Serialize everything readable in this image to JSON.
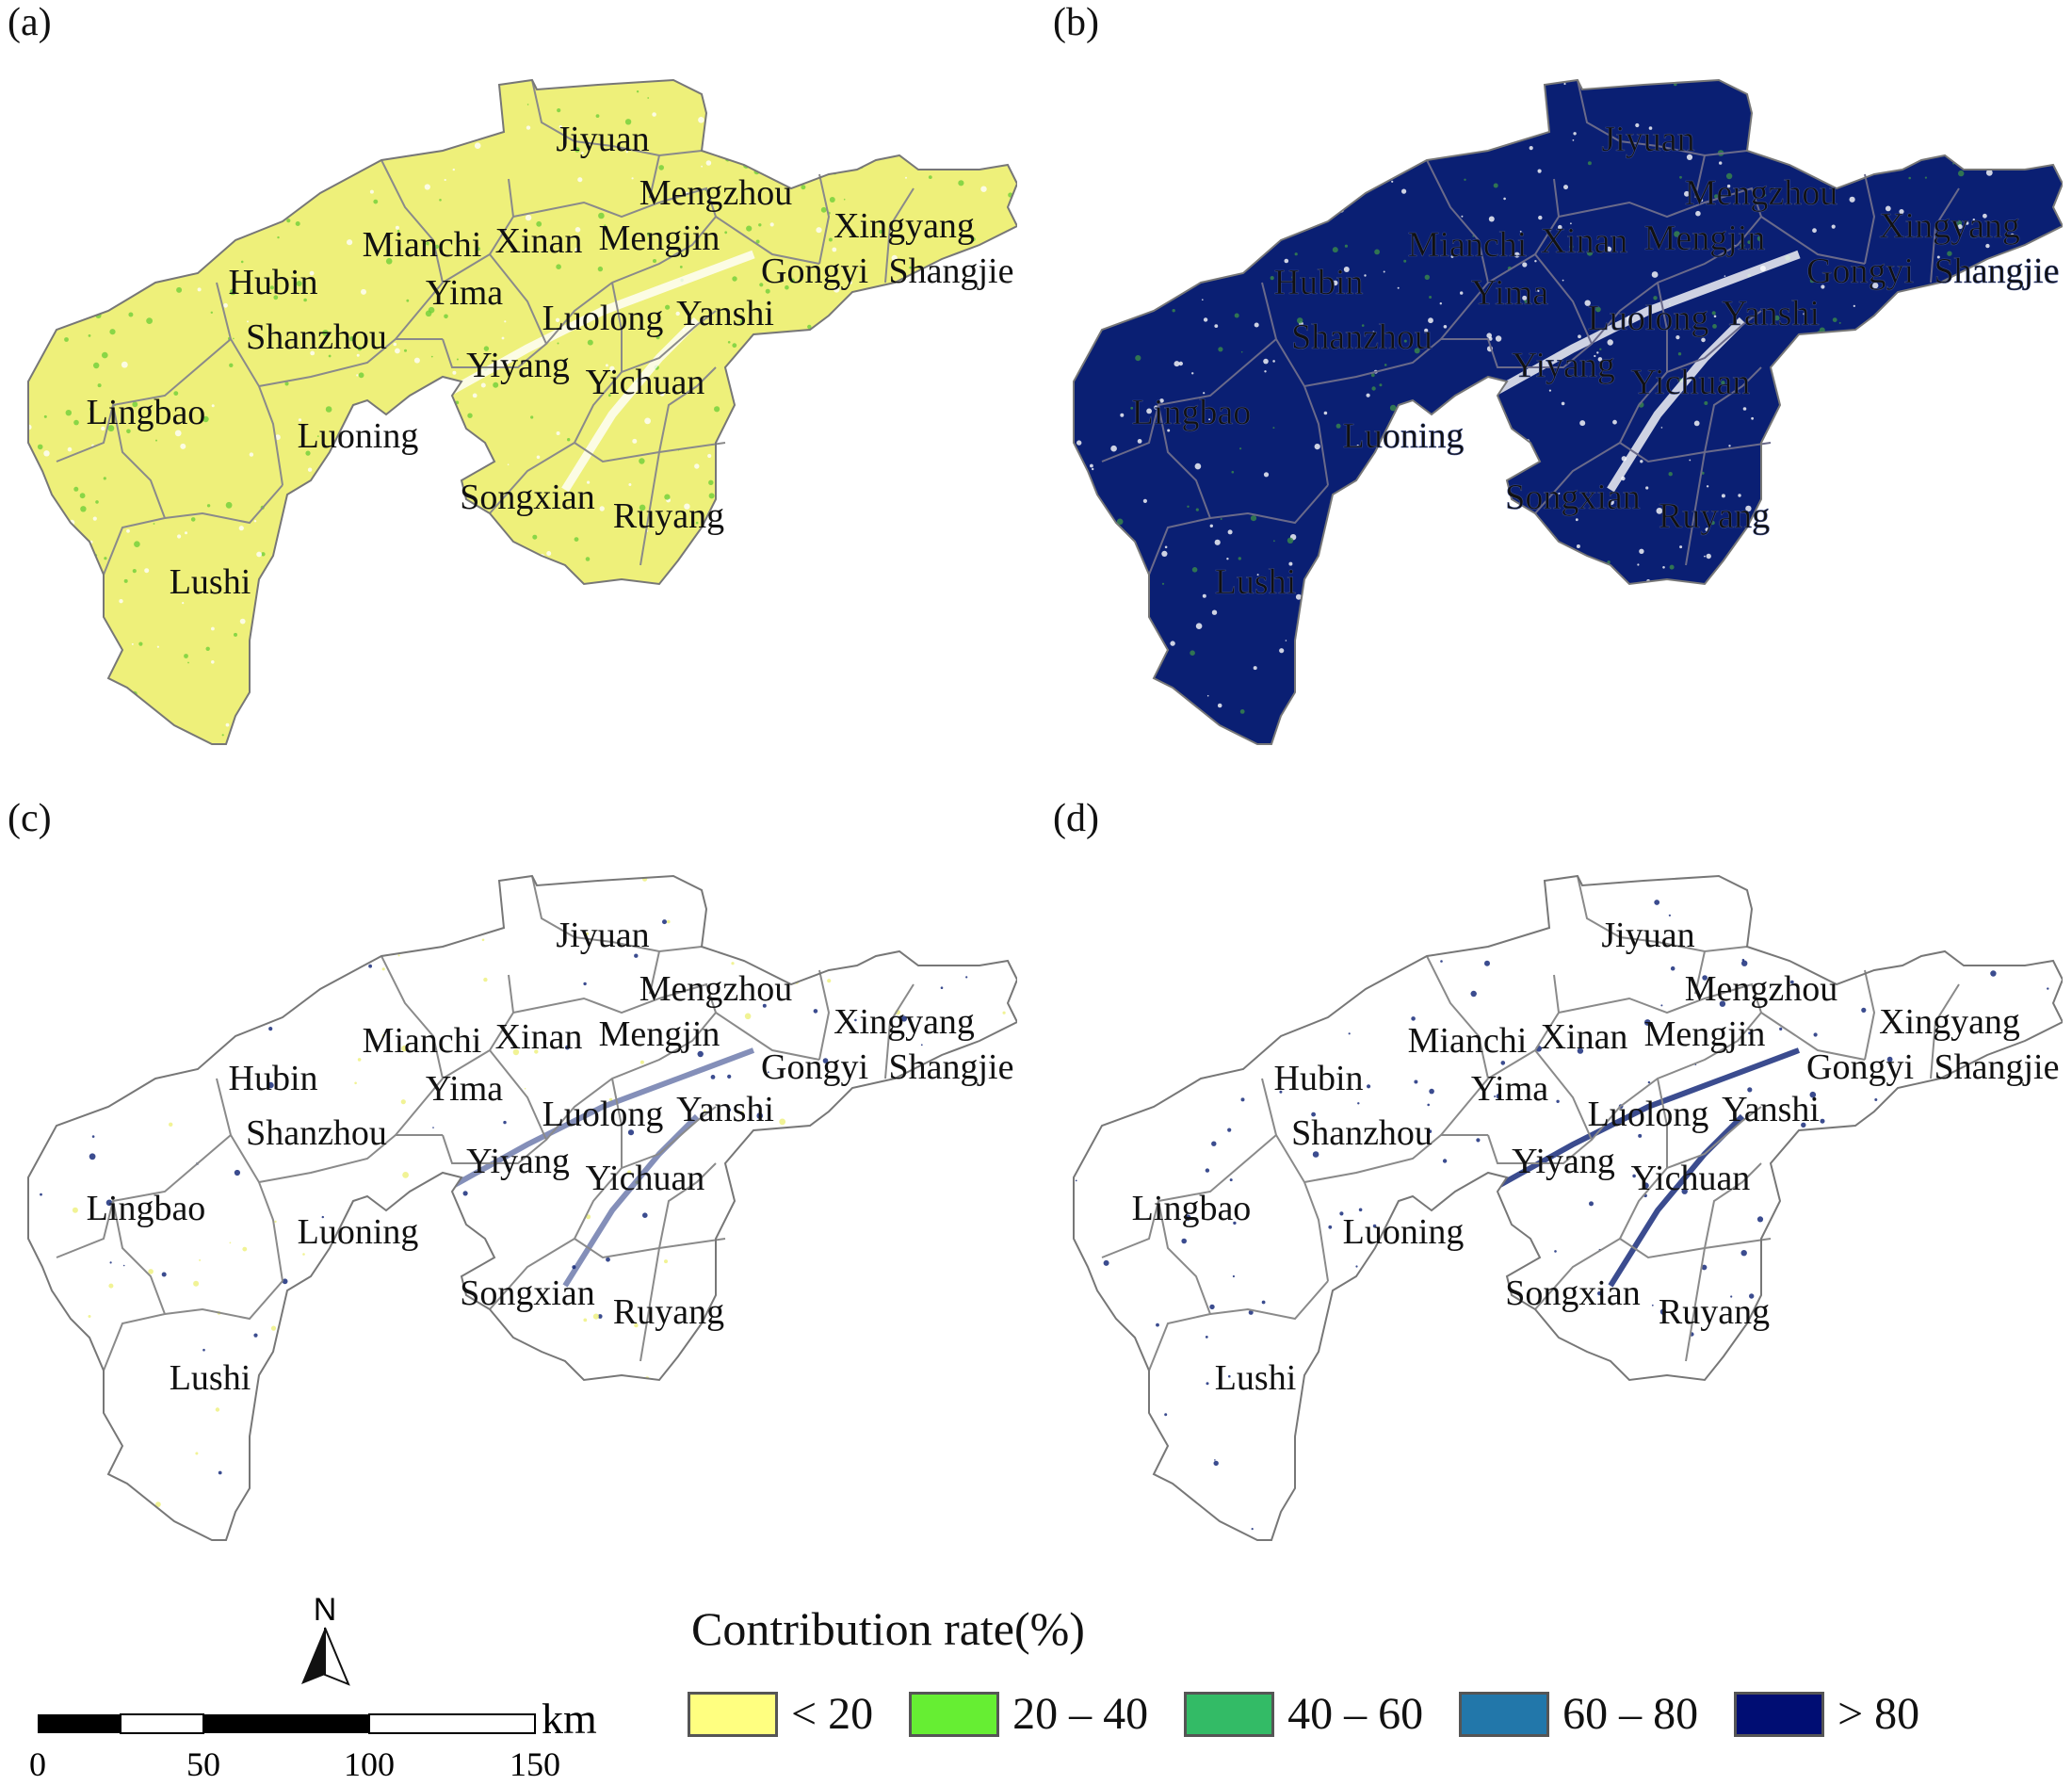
{
  "panels": [
    {
      "label": "(a)",
      "fill": "#eef07a",
      "speckle": "#6fcf3a",
      "speckle2": "#ffffff"
    },
    {
      "label": "(b)",
      "fill": "#0a1f73",
      "speckle": "#ffffff",
      "speckle2": "#3a8a4a"
    },
    {
      "label": "(c)",
      "fill": "#ffffff",
      "speckle": "#eef07a",
      "speckle2": "#0a1f73"
    },
    {
      "label": "(d)",
      "fill": "#ffffff",
      "speckle": "#0a1f73",
      "speckle2": "#0a1f73"
    }
  ],
  "places": {
    "jiyuan": "Jiyuan",
    "mengzhou": "Mengzhou",
    "xingyang": "Xingyang",
    "mianchi": "Mianchi",
    "xinan": "Xinan",
    "mengjin": "Mengjin",
    "gongyi": "Gongyi",
    "shangjie": "Shangjie",
    "hubin": "Hubin",
    "yima": "Yima",
    "luolong": "Luolong",
    "yanshi": "Yanshi",
    "shanzhou": "Shanzhou",
    "yiyang": "Yiyang",
    "yichuan": "Yichuan",
    "lingbao": "Lingbao",
    "luoning": "Luoning",
    "songxian": "Songxian",
    "ruyang": "Ruyang",
    "lushi": "Lushi"
  },
  "legend": {
    "title": "Contribution rate(%)",
    "classes": [
      {
        "label": "< 20",
        "color": "#ffff80"
      },
      {
        "label": "20 – 40",
        "color": "#66ee33"
      },
      {
        "label": "40 – 60",
        "color": "#33bb66"
      },
      {
        "label": "60 – 80",
        "color": "#2277aa"
      },
      {
        "label": "> 80",
        "color": "#000d73"
      }
    ]
  },
  "north_arrow": {
    "label": "N"
  },
  "scale_bar": {
    "unit": "km",
    "ticks": [
      "0",
      "50",
      "100",
      "150"
    ]
  }
}
